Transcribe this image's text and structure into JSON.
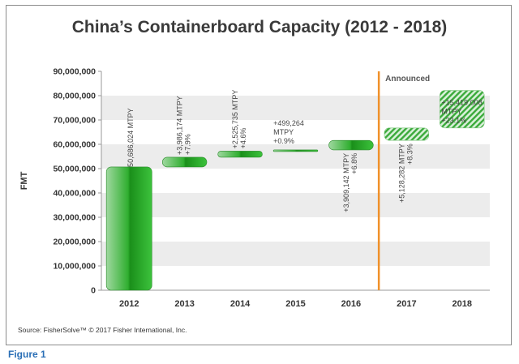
{
  "title": "China’s Containerboard Capacity (2012 - 2018)",
  "source": "Source: FisherSolve™ © 2017 Fisher International, Inc.",
  "figure_caption": "Figure 1",
  "chart_data": {
    "type": "bar",
    "subtype": "waterfall",
    "title": "China’s Containerboard Capacity (2012 - 2018)",
    "xlabel": "",
    "ylabel": "FMT",
    "ylim": [
      0,
      90000000
    ],
    "yticks": [
      "0",
      "10,000,000",
      "20,000,000",
      "30,000,000",
      "40,000,000",
      "50,000,000",
      "60,000,000",
      "70,000,000",
      "80,000,000",
      "90,000,000"
    ],
    "grid": "horizontal bands",
    "categories": [
      "2012",
      "2013",
      "2014",
      "2015",
      "2016",
      "2017",
      "2018"
    ],
    "bars": [
      {
        "category": "2012",
        "start": 0,
        "end": 50686024,
        "label": [
          "50,686,024 MTPY"
        ],
        "style": "solid"
      },
      {
        "category": "2013",
        "start": 50686024,
        "end": 54672198,
        "label": [
          "+3,986,174 MTPY",
          "+7.9%"
        ],
        "style": "solid"
      },
      {
        "category": "2014",
        "start": 54672198,
        "end": 57197933,
        "label": [
          "+2,525,735 MTPY",
          "+4.6%"
        ],
        "style": "solid"
      },
      {
        "category": "2015",
        "start": 57197933,
        "end": 57697197,
        "label": [
          "+499,264",
          "MTPY",
          "+0.9%"
        ],
        "style": "solid"
      },
      {
        "category": "2016",
        "start": 57697197,
        "end": 61606339,
        "label": [
          "+3,909,142 MTPY",
          "+6.8%"
        ],
        "style": "solid"
      },
      {
        "category": "2017",
        "start": 61606339,
        "end": 66734621,
        "label": [
          "+5,128,282 MTPY",
          "+8.3%"
        ],
        "style": "hatched"
      },
      {
        "category": "2018",
        "start": 66734621,
        "end": 82153629,
        "label": [
          "+15,419,008",
          "MTPY",
          "+23.1%"
        ],
        "style": "hatched"
      }
    ],
    "annotation": {
      "text": "Announced",
      "between": [
        "2016",
        "2017"
      ],
      "color": "#f0912a"
    },
    "colors": {
      "bar_dark": "#1f9a1f",
      "bar_light": "#9fd89f",
      "band": "#ececec",
      "divider": "#f0912a"
    }
  }
}
